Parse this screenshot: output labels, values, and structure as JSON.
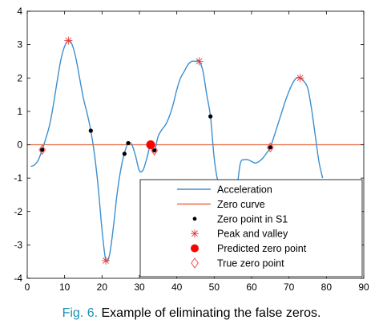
{
  "chart_data": {
    "type": "line",
    "xlim": [
      0,
      90
    ],
    "ylim": [
      -4,
      4
    ],
    "xticks": [
      0,
      10,
      20,
      30,
      40,
      50,
      60,
      70,
      80,
      90
    ],
    "yticks": [
      4,
      3,
      2,
      1,
      0,
      -1,
      -2,
      -3,
      -4
    ],
    "grid": false,
    "legend_position": "bottom-right",
    "colors": {
      "acceleration": "#3d8fd0",
      "zero_curve": "#e8643c",
      "zero_point": "#000000",
      "peak_valley": "#e23c3c",
      "predicted": "#ff0000",
      "true_zero": "#ff4a4a"
    },
    "series": [
      {
        "name": "Acceleration",
        "kind": "line",
        "x": [
          1,
          2,
          3,
          4,
          5,
          6,
          7,
          8,
          9,
          10,
          11,
          12,
          13,
          14,
          15,
          16,
          17,
          18,
          19,
          20,
          21,
          22,
          23,
          24,
          25,
          26,
          27,
          28,
          29,
          30,
          31,
          32,
          33,
          34,
          35,
          36,
          37,
          38,
          39,
          40,
          41,
          42,
          43,
          44,
          45,
          46,
          47,
          48,
          49,
          50,
          51,
          52,
          53,
          54,
          55,
          56,
          57,
          58,
          59,
          60,
          61,
          62,
          63,
          64,
          65,
          66,
          67,
          68,
          69,
          70,
          71,
          72,
          73,
          74,
          75,
          76,
          77,
          78,
          79
        ],
        "y": [
          -0.65,
          -0.6,
          -0.45,
          -0.15,
          0.2,
          0.6,
          1.2,
          1.9,
          2.55,
          2.95,
          3.12,
          3.0,
          2.6,
          2.0,
          1.4,
          0.95,
          0.42,
          -0.3,
          -1.3,
          -2.55,
          -3.45,
          -3.3,
          -2.5,
          -1.5,
          -0.75,
          -0.25,
          0.05,
          0.0,
          -0.35,
          -0.78,
          -0.75,
          -0.4,
          0.0,
          -0.18,
          0.25,
          0.45,
          0.6,
          0.85,
          1.2,
          1.65,
          2.0,
          2.2,
          2.4,
          2.5,
          2.5,
          2.5,
          2.2,
          1.5,
          0.85,
          -0.4,
          -1.1,
          -1.3,
          -1.3,
          -1.3,
          -1.3,
          -1.3,
          -0.55,
          -0.45,
          -0.45,
          -0.5,
          -0.55,
          -0.5,
          -0.4,
          -0.25,
          -0.08,
          0.25,
          0.6,
          0.95,
          1.3,
          1.6,
          1.85,
          2.0,
          2.0,
          1.9,
          1.7,
          1.1,
          0.3,
          -0.5,
          -1.0
        ]
      },
      {
        "name": "Zero curve",
        "kind": "line",
        "x": [
          0,
          90
        ],
        "y": [
          0,
          0
        ]
      },
      {
        "name": "Zero point in S1",
        "kind": "scatter",
        "x": [
          4,
          17,
          26,
          27,
          34,
          49,
          65
        ],
        "y": [
          -0.15,
          0.42,
          -0.27,
          0.05,
          -0.17,
          0.85,
          -0.08
        ]
      },
      {
        "name": "Peak and valley",
        "kind": "scatter",
        "x": [
          11,
          21,
          46,
          73
        ],
        "y": [
          3.12,
          -3.47,
          2.5,
          2.0
        ]
      },
      {
        "name": "Predicted zero point",
        "kind": "scatter",
        "x": [
          33
        ],
        "y": [
          0.0
        ]
      },
      {
        "name": "True zero point",
        "kind": "scatter",
        "x": [
          4,
          34,
          65
        ],
        "y": [
          -0.15,
          -0.17,
          -0.08
        ]
      }
    ]
  },
  "caption": {
    "figure_label": "Fig. 6.",
    "text": "Example of eliminating the false zeros."
  }
}
